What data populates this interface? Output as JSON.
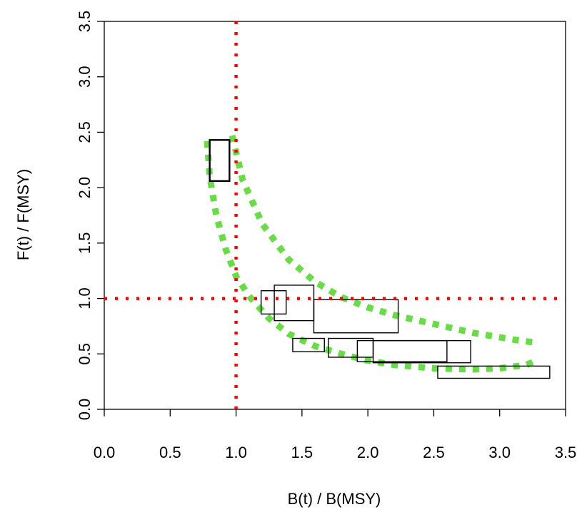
{
  "chart_data": {
    "type": "scatter",
    "title": "",
    "xlabel": "B(t) / B(MSY)",
    "ylabel": "F(t) / F(MSY)",
    "xlim": [
      0,
      3.5
    ],
    "ylim": [
      0,
      3.5
    ],
    "xticks": [
      "0.0",
      "0.5",
      "1.0",
      "1.5",
      "2.0",
      "2.5",
      "3.0",
      "3.5"
    ],
    "yticks": [
      "0.0",
      "0.5",
      "1.0",
      "1.5",
      "2.0",
      "2.5",
      "3.0",
      "3.5"
    ],
    "grid": false,
    "reference_lines": {
      "color": "#ff0000",
      "style": "dotted",
      "vertical_x": 1.0,
      "horizontal_y": 1.0
    },
    "boxes": [
      {
        "x0": 0.8,
        "x1": 0.95,
        "y0": 2.06,
        "y1": 2.43
      },
      {
        "x0": 1.19,
        "x1": 1.38,
        "y0": 0.86,
        "y1": 1.07
      },
      {
        "x0": 1.29,
        "x1": 1.59,
        "y0": 0.8,
        "y1": 1.12
      },
      {
        "x0": 1.59,
        "x1": 2.23,
        "y0": 0.69,
        "y1": 0.99
      },
      {
        "x0": 1.43,
        "x1": 1.67,
        "y0": 0.52,
        "y1": 0.64
      },
      {
        "x0": 1.7,
        "x1": 2.04,
        "y0": 0.47,
        "y1": 0.64
      },
      {
        "x0": 1.92,
        "x1": 2.6,
        "y0": 0.43,
        "y1": 0.62
      },
      {
        "x0": 2.04,
        "x1": 2.78,
        "y0": 0.42,
        "y1": 0.62
      },
      {
        "x0": 2.53,
        "x1": 3.38,
        "y0": 0.28,
        "y1": 0.39
      }
    ],
    "envelope": {
      "color": "#66dd44",
      "style": "dotted",
      "upper": [
        [
          0.97,
          2.47
        ],
        [
          1.05,
          2.07
        ],
        [
          1.2,
          1.67
        ],
        [
          1.4,
          1.35
        ],
        [
          1.6,
          1.15
        ],
        [
          1.8,
          1.01
        ],
        [
          2.0,
          0.92
        ],
        [
          2.2,
          0.85
        ],
        [
          2.5,
          0.77
        ],
        [
          2.8,
          0.69
        ],
        [
          3.1,
          0.63
        ],
        [
          3.28,
          0.6
        ]
      ],
      "lower": [
        [
          0.78,
          2.42
        ],
        [
          0.8,
          2.1
        ],
        [
          0.85,
          1.75
        ],
        [
          0.92,
          1.45
        ],
        [
          1.0,
          1.2
        ],
        [
          1.1,
          1.02
        ],
        [
          1.25,
          0.82
        ],
        [
          1.4,
          0.68
        ],
        [
          1.6,
          0.57
        ],
        [
          1.8,
          0.5
        ],
        [
          2.0,
          0.44
        ],
        [
          2.2,
          0.4
        ],
        [
          2.5,
          0.37
        ],
        [
          2.8,
          0.36
        ],
        [
          3.0,
          0.37
        ],
        [
          3.2,
          0.4
        ],
        [
          3.3,
          0.45
        ]
      ]
    }
  }
}
